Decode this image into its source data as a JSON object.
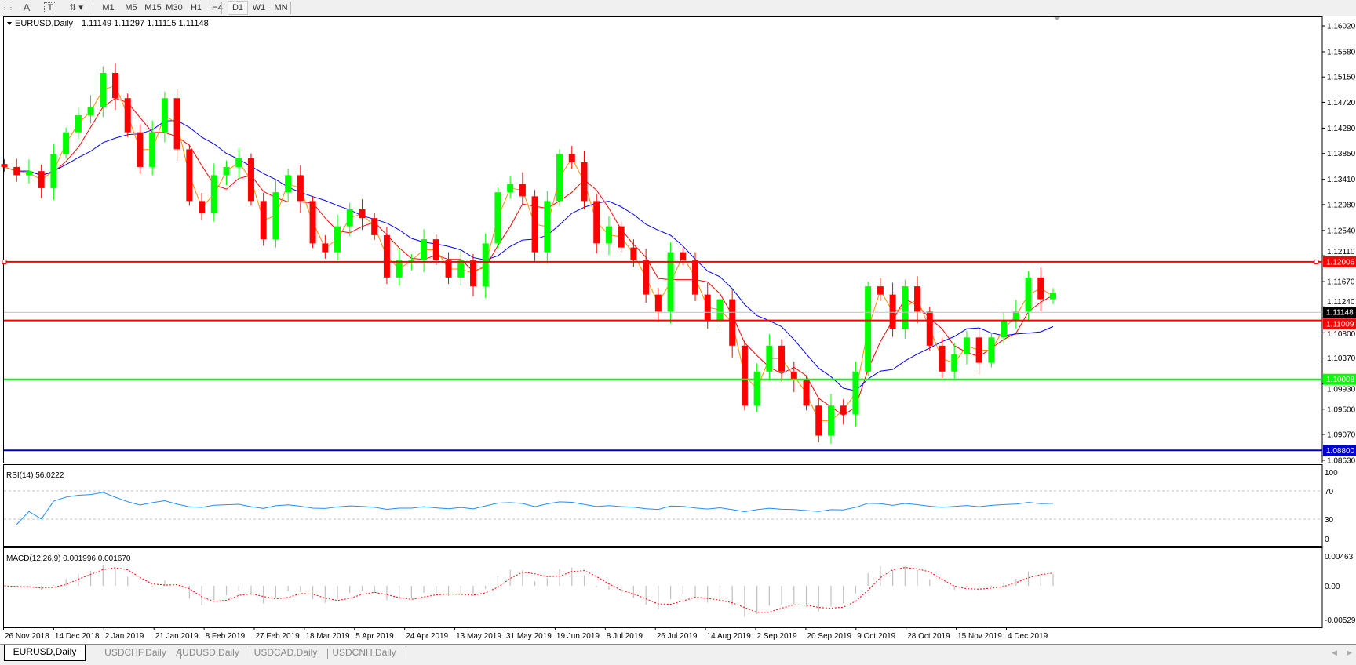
{
  "toolbar": {
    "tools": [
      {
        "icon": "grid-icon"
      },
      {
        "icon": "text-a-icon",
        "label": "A"
      },
      {
        "icon": "text-label-icon",
        "label": "T"
      },
      {
        "icon": "arrows-icon"
      }
    ],
    "timeframes": [
      "M1",
      "M5",
      "M15",
      "M30",
      "H1",
      "H4",
      "D1",
      "W1",
      "MN"
    ],
    "active_timeframe": "D1"
  },
  "chart_header": {
    "symbol": "EURUSD,Daily",
    "ohlc": "1.11149 1.11297 1.11115 1.11148"
  },
  "chart_data": {
    "type": "candlestick",
    "symbol": "EURUSD",
    "timeframe": "Daily",
    "x_labels": [
      "26 Nov 2018",
      "14 Dec 2018",
      "2 Jan 2019",
      "21 Jan 2019",
      "8 Feb 2019",
      "27 Feb 2019",
      "18 Mar 2019",
      "5 Apr 2019",
      "24 Apr 2019",
      "13 May 2019",
      "31 May 2019",
      "19 Jun 2019",
      "8 Jul 2019",
      "26 Jul 2019",
      "14 Aug 2019",
      "2 Sep 2019",
      "20 Sep 2019",
      "9 Oct 2019",
      "28 Oct 2019",
      "15 Nov 2019",
      "4 Dec 2019"
    ],
    "y_ticks": [
      "1.16020",
      "1.15580",
      "1.15150",
      "1.14720",
      "1.14280",
      "1.13850",
      "1.13410",
      "1.12980",
      "1.12540",
      "1.12110",
      "1.11670",
      "1.11240",
      "1.10800",
      "1.10370",
      "1.09930",
      "1.09500",
      "1.09070",
      "1.08630"
    ],
    "ylim": [
      1.0863,
      1.1602
    ],
    "closes": [
      1.1362,
      1.1348,
      1.1355,
      1.1326,
      1.1384,
      1.1421,
      1.145,
      1.1464,
      1.1522,
      1.1479,
      1.1421,
      1.1362,
      1.1421,
      1.1479,
      1.1392,
      1.1304,
      1.1283,
      1.1348,
      1.1362,
      1.1377,
      1.1304,
      1.1239,
      1.1319,
      1.1348,
      1.1304,
      1.1232,
      1.1217,
      1.1261,
      1.129,
      1.1275,
      1.1246,
      1.1174,
      1.1203,
      1.1203,
      1.1239,
      1.1203,
      1.1174,
      1.1203,
      1.1159,
      1.1232,
      1.1319,
      1.1333,
      1.1312,
      1.1217,
      1.1304,
      1.1384,
      1.137,
      1.1304,
      1.1232,
      1.1261,
      1.1225,
      1.1203,
      1.1145,
      1.1116,
      1.1217,
      1.1203,
      1.1145,
      1.1101,
      1.1137,
      1.1058,
      1.0956,
      1.1014,
      1.1058,
      1.1014,
      1.0999,
      1.0956,
      1.0905,
      1.0956,
      1.0941,
      1.1014,
      1.1159,
      1.1145,
      1.1087,
      1.1159,
      1.1116,
      1.1058,
      1.1014,
      1.1043,
      1.1072,
      1.1029,
      1.1072,
      1.1101,
      1.1116,
      1.1174,
      1.1137,
      1.1148
    ],
    "moving_averages": [
      {
        "color": "#ff0000"
      },
      {
        "color": "#0000ff"
      },
      {
        "color": "#ff8c00"
      }
    ],
    "candle_colors": {
      "up": "#00ff00",
      "down": "#ff0000"
    },
    "horizontal_lines": [
      {
        "price": 1.12006,
        "label": "1.12006",
        "color": "#ff0000"
      },
      {
        "price": 1.11009,
        "label": "1.11009",
        "color": "#ff0000"
      },
      {
        "price": 1.10008,
        "label": "1.10008",
        "color": "#00ff00"
      },
      {
        "price": 1.088,
        "label": "1.08800",
        "color": "#0000cc"
      }
    ],
    "current_price": {
      "price": 1.11148,
      "label": "1.11148",
      "color": "#000000"
    },
    "rsi": {
      "label": "RSI(14) 56.0222",
      "ticks": [
        "100",
        "70",
        "30",
        "0"
      ],
      "levels": [
        70,
        30
      ],
      "color": "#1e90ff"
    },
    "macd": {
      "label": "MACD(12,26,9) 0.001996 0.001670",
      "ticks": [
        "0.00463",
        "0.00",
        "-0.005299"
      ],
      "ylim": [
        -0.005299,
        0.00463
      ],
      "signal_color": "#ff0000",
      "hist_color": "#c0c0c0"
    }
  },
  "tabs": [
    {
      "label": "EURUSD,Daily",
      "active": true
    },
    {
      "label": "USDCHF,Daily"
    },
    {
      "label": "AUDUSD,Daily"
    },
    {
      "label": "USDCAD,Daily"
    },
    {
      "label": "USDCNH,Daily"
    }
  ]
}
